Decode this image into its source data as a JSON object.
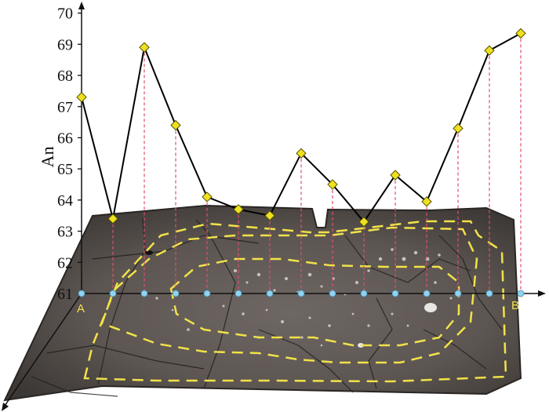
{
  "chart_data": {
    "type": "line",
    "ylabel": "An",
    "yticks": [
      61,
      62,
      63,
      64,
      65,
      66,
      67,
      68,
      69,
      70
    ],
    "ylim": [
      61,
      70
    ],
    "x_start_label": "A",
    "x_end_label": "B",
    "series": [
      {
        "values": [
          67.3,
          63.4,
          68.9,
          66.4,
          64.1,
          63.7,
          63.5,
          65.5,
          64.5,
          63.3,
          64.8,
          63.95,
          66.3,
          68.8,
          69.35
        ]
      }
    ]
  },
  "colors": {
    "line": "#000000",
    "marker_fill": "#f0e020",
    "marker_stroke": "#555500",
    "dashed_drop": "#e0506a",
    "base_point": "#8fd3f0",
    "zone_outline": "#f1e24a",
    "crystal_dark": "#4a4542",
    "crystal_mid": "#615a56"
  }
}
